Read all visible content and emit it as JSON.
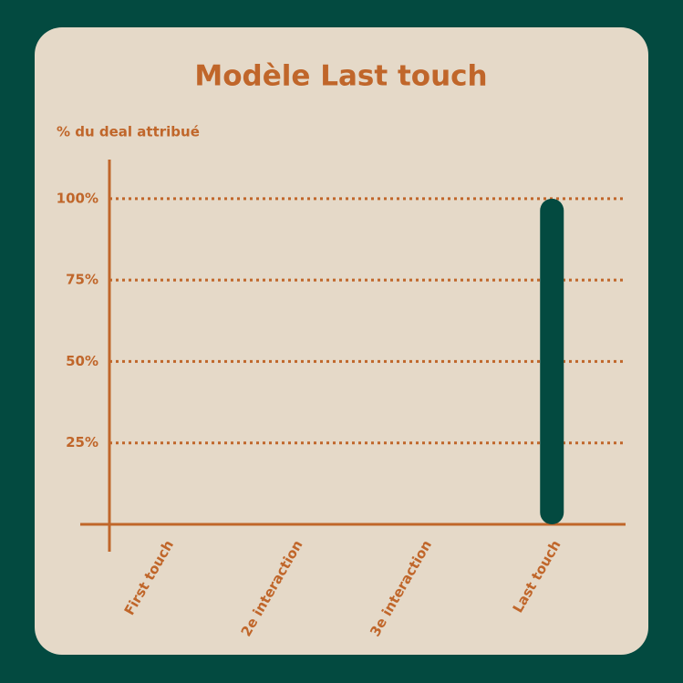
{
  "chart_data": {
    "type": "bar",
    "title": "Modèle Last touch",
    "y_label": "% du deal attribué",
    "categories": [
      "First touch",
      "2e interaction",
      "3e interaction",
      "Last touch"
    ],
    "values": [
      0,
      0,
      0,
      100
    ],
    "color": "#034a40",
    "ylim": [
      0,
      112
    ],
    "yticks": [
      {
        "value": 25,
        "label": "25%"
      },
      {
        "value": 50,
        "label": "50%"
      },
      {
        "value": 75,
        "label": "75%"
      },
      {
        "value": 100,
        "label": "100%"
      }
    ],
    "grid": true
  }
}
